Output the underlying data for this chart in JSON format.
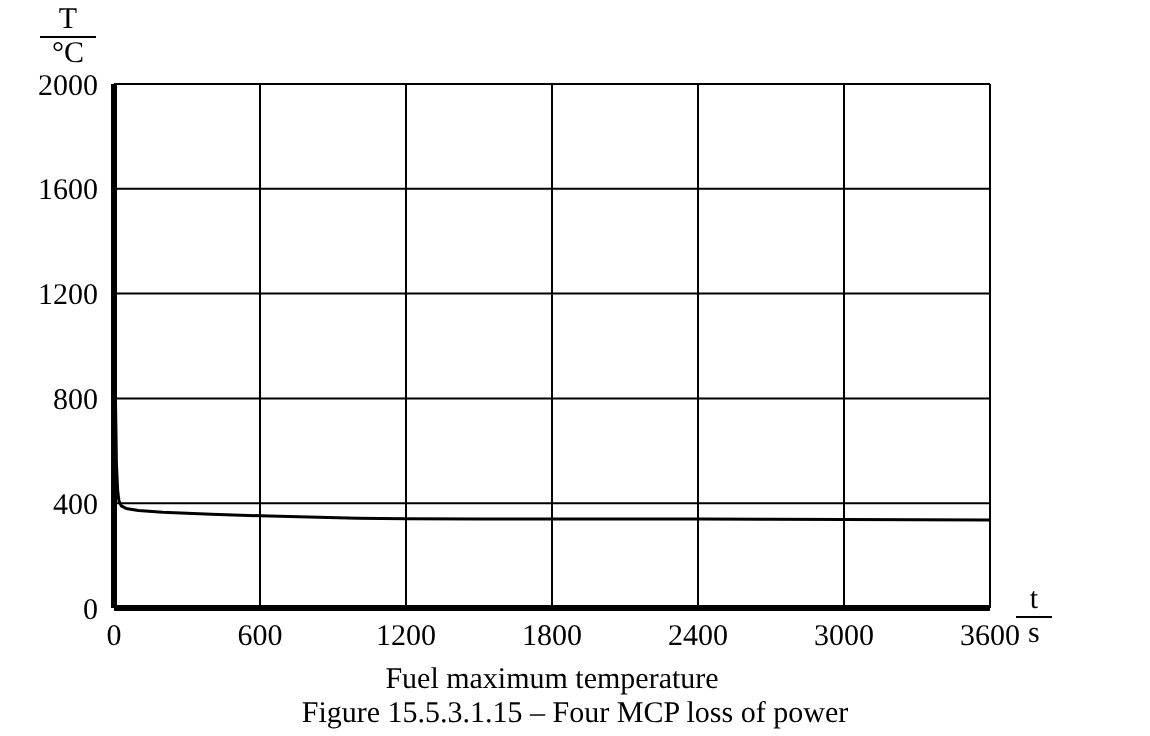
{
  "chart_data": {
    "type": "line",
    "xlabel": "t\ns",
    "ylabel": "T\n°C",
    "subtitle": "Fuel maximum temperature",
    "annotations": [
      "Figure 15.5.3.1.15 – Four MCP loss of power"
    ],
    "x": [
      0,
      3,
      6,
      10,
      15,
      20,
      30,
      50,
      100,
      200,
      400,
      600,
      800,
      1000,
      1200,
      1500,
      1800,
      2100,
      2400,
      2700,
      3000,
      3300,
      3600
    ],
    "series": [
      {
        "color": "#000000",
        "values": [
          1800,
          1300,
          800,
          550,
          450,
          410,
          390,
          380,
          372,
          365,
          358,
          352,
          347,
          343,
          341,
          340,
          340,
          340,
          340,
          339,
          338,
          337,
          336
        ]
      }
    ],
    "xlim": [
      0,
      3600
    ],
    "xticks": [
      0,
      600,
      1200,
      1800,
      2400,
      3000,
      3600
    ],
    "ylim": [
      0,
      2000
    ],
    "yticks": [
      0,
      400,
      800,
      1200,
      1600,
      2000
    ],
    "grid": true,
    "legend": false,
    "marker": "none",
    "line_style": "solid"
  }
}
